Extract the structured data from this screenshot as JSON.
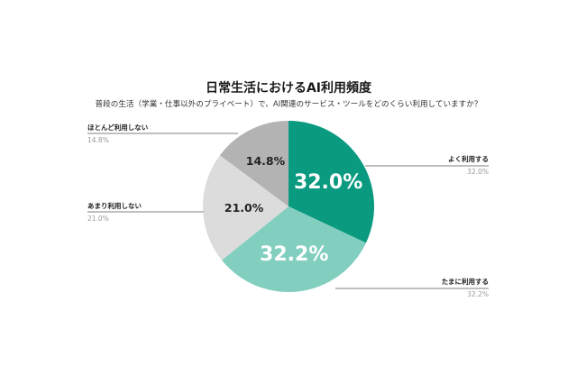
{
  "chart_data": {
    "type": "pie",
    "title": "日常生活におけるAI利用頻度",
    "subtitle": "普段の生活（学業・仕事以外のプライベート）で、AI関連のサービス・ツールをどのくらい利用していますか？",
    "slices": [
      {
        "label": "よく利用する",
        "value": 32.0,
        "value_label": "32.0%",
        "color": "#0a9a80",
        "text_color": "#ffffff"
      },
      {
        "label": "たまに利用する",
        "value": 32.2,
        "value_label": "32.2%",
        "color": "#82cfc0",
        "text_color": "#ffffff"
      },
      {
        "label": "あまり利用しない",
        "value": 21.0,
        "value_label": "21.0%",
        "color": "#dcdcdc",
        "text_color": "#222222"
      },
      {
        "label": "ほとんど利用しない",
        "value": 14.8,
        "value_label": "14.8%",
        "color": "#b3b3b3",
        "text_color": "#222222"
      }
    ],
    "start_angle_deg": 0,
    "direction": "clockwise"
  },
  "colors": {
    "leader_line": "#555555",
    "legend_value": "#999999"
  }
}
